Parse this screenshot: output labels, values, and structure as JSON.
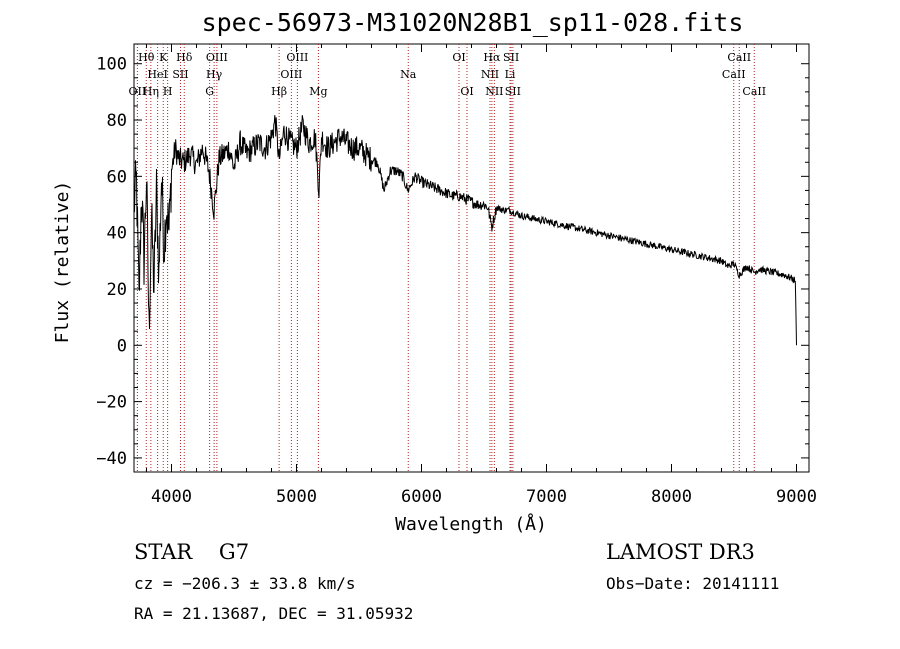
{
  "title": "spec-56973-M31020N28B1_sp11-028.fits",
  "footer": {
    "object_class": "STAR",
    "subclass": "G7",
    "survey": "LAMOST DR3",
    "cz": "cz = −206.3 ± 33.8 km/s",
    "obs_date": "Obs−Date: 20141111",
    "coords": "RA =  21.13687, DEC =  31.05932"
  },
  "chart_data": {
    "type": "line",
    "title": "spec-56973-M31020N28B1_sp11-028.fits",
    "xlabel": "Wavelength (Å)",
    "ylabel": "Flux (relative)",
    "xlim": [
      3700,
      9100
    ],
    "ylim": [
      -45,
      107
    ],
    "xticks": [
      4000,
      5000,
      6000,
      7000,
      8000,
      9000
    ],
    "xtick_labels": [
      "4000",
      "5000",
      "6000",
      "7000",
      "8000",
      "9000"
    ],
    "yticks": [
      -40,
      -20,
      0,
      20,
      40,
      60,
      80,
      100
    ],
    "ytick_labels": [
      "−40",
      "−20",
      "0",
      "20",
      "40",
      "60",
      "80",
      "100"
    ],
    "grid": false,
    "series": [
      {
        "name": "flux",
        "x": [
          3700,
          3720,
          3740,
          3760,
          3780,
          3800,
          3820,
          3840,
          3860,
          3880,
          3900,
          3920,
          3940,
          3960,
          3980,
          4000,
          4030,
          4060,
          4100,
          4150,
          4200,
          4250,
          4300,
          4340,
          4380,
          4420,
          4460,
          4500,
          4550,
          4600,
          4650,
          4700,
          4750,
          4800,
          4830,
          4861,
          4900,
          4950,
          5000,
          5050,
          5100,
          5150,
          5180,
          5200,
          5250,
          5300,
          5350,
          5400,
          5450,
          5500,
          5550,
          5600,
          5650,
          5700,
          5750,
          5800,
          5850,
          5890,
          5950,
          6000,
          6050,
          6100,
          6150,
          6200,
          6250,
          6300,
          6350,
          6400,
          6450,
          6500,
          6530,
          6563,
          6600,
          6650,
          6700,
          6750,
          6800,
          6900,
          7000,
          7100,
          7200,
          7300,
          7400,
          7500,
          7600,
          7700,
          7800,
          7900,
          8000,
          8100,
          8200,
          8300,
          8400,
          8450,
          8500,
          8542,
          8600,
          8662,
          8700,
          8800,
          8900,
          8950,
          8990,
          9000
        ],
        "y": [
          50,
          58,
          15,
          55,
          30,
          60,
          5,
          45,
          20,
          55,
          25,
          60,
          35,
          50,
          40,
          62,
          70,
          66,
          65,
          68,
          64,
          70,
          62,
          48,
          66,
          68,
          70,
          63,
          72,
          68,
          70,
          72,
          70,
          74,
          80,
          66,
          76,
          72,
          70,
          78,
          72,
          74,
          55,
          74,
          70,
          72,
          74,
          72,
          70,
          70,
          68,
          66,
          65,
          55,
          62,
          62,
          60,
          55,
          60,
          58,
          57,
          56,
          55,
          54,
          53,
          53,
          52,
          51,
          50,
          50,
          49,
          42,
          49,
          48,
          48,
          47,
          46,
          45,
          44,
          43,
          42,
          41,
          40,
          39,
          38,
          37,
          36,
          35,
          34,
          33,
          32,
          31,
          30,
          28,
          29,
          25,
          28,
          26,
          27,
          26,
          25,
          24,
          23,
          0
        ]
      }
    ],
    "lines": [
      {
        "name": "OII",
        "x": 3727,
        "row": 3
      },
      {
        "name": "Hθ",
        "x": 3798,
        "row": 1
      },
      {
        "name": "Hη",
        "x": 3835,
        "row": 3
      },
      {
        "name": "HeI",
        "x": 3889,
        "row": 2
      },
      {
        "name": "K",
        "x": 3934,
        "row": 1
      },
      {
        "name": "H",
        "x": 3969,
        "row": 3
      },
      {
        "name": "SII",
        "x": 4072,
        "row": 2
      },
      {
        "name": "Hδ",
        "x": 4102,
        "row": 1
      },
      {
        "name": "G",
        "x": 4305,
        "row": 3
      },
      {
        "name": "Hγ",
        "x": 4341,
        "row": 2
      },
      {
        "name": "OIII",
        "x": 4363,
        "row": 1
      },
      {
        "name": "Hβ",
        "x": 4861,
        "row": 3
      },
      {
        "name": "OIII",
        "x": 4959,
        "row": 2
      },
      {
        "name": "OIII",
        "x": 5007,
        "row": 1
      },
      {
        "name": "Mg",
        "x": 5175,
        "row": 3
      },
      {
        "name": "Na",
        "x": 5894,
        "row": 2
      },
      {
        "name": "OI",
        "x": 6300,
        "row": 1
      },
      {
        "name": "OI",
        "x": 6364,
        "row": 3
      },
      {
        "name": "NII",
        "x": 6548,
        "row": 2
      },
      {
        "name": "Hα",
        "x": 6563,
        "row": 1
      },
      {
        "name": "NII",
        "x": 6583,
        "row": 3
      },
      {
        "name": "Li",
        "x": 6708,
        "row": 2
      },
      {
        "name": "SII",
        "x": 6717,
        "row": 1
      },
      {
        "name": "SII",
        "x": 6731,
        "row": 3
      },
      {
        "name": "CaII",
        "x": 8498,
        "row": 2
      },
      {
        "name": "CaII",
        "x": 8542,
        "row": 1
      },
      {
        "name": "CaII",
        "x": 8662,
        "row": 3
      }
    ]
  }
}
